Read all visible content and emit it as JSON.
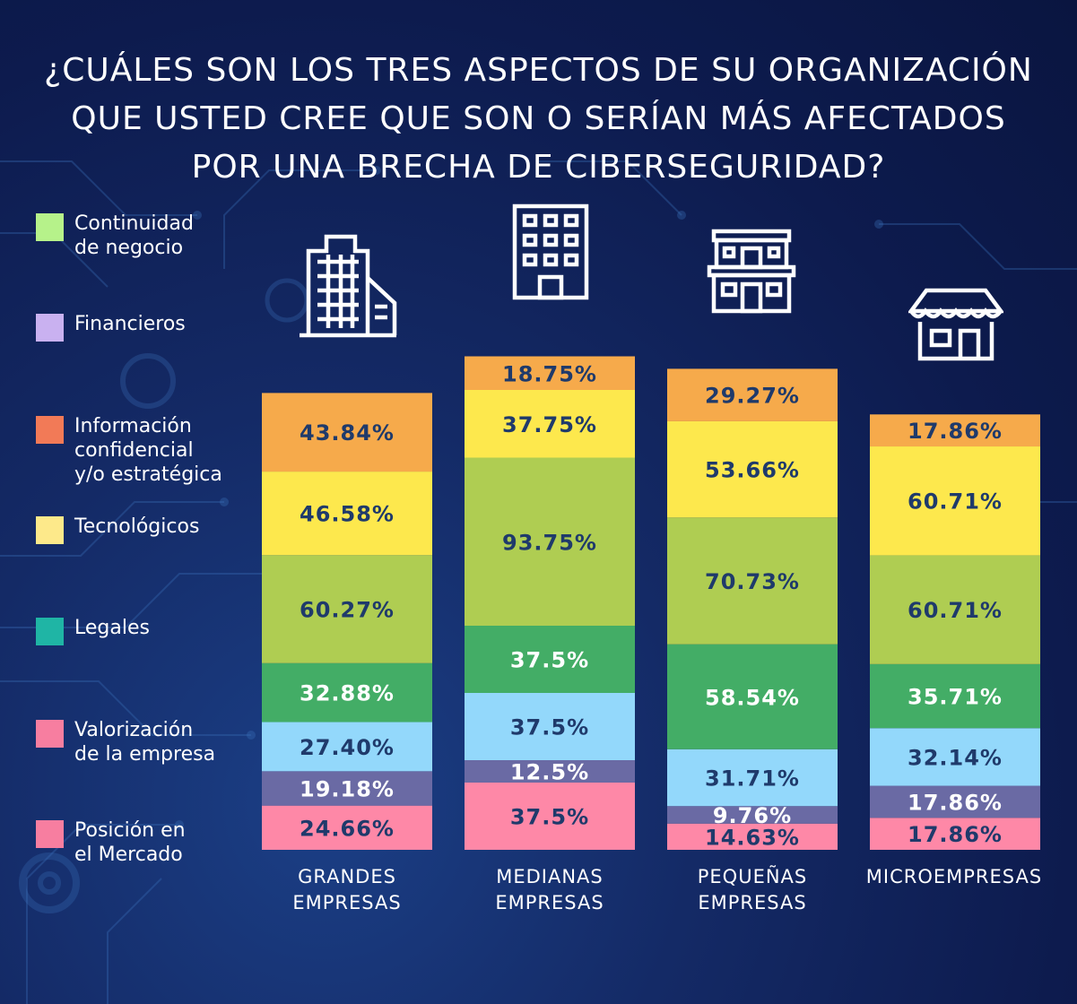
{
  "title_lines": [
    "¿CUÁLES SON LOS TRES ASPECTOS DE SU ORGANIZACIÓN",
    "QUE USTED CREE QUE SON O SERÍAN MÁS AFECTADOS",
    "POR UNA BRECHA DE CIBERSEGURIDAD?"
  ],
  "legend": [
    {
      "label": "Continuidad\nde negocio",
      "color": "#b6f28a"
    },
    {
      "label": "Financieros",
      "color": "#c9b1f0"
    },
    {
      "label": "Información\nconfidencial\ny/o estratégica",
      "color": "#f27a57"
    },
    {
      "label": "Tecnológicos",
      "color": "#fde98a"
    },
    {
      "label": "Legales",
      "color": "#1fb5a5"
    },
    {
      "label": "Valorización\nde la empresa",
      "color": "#f77ea0"
    },
    {
      "label": "Posición en\nel Mercado",
      "color": "#f77ea0"
    }
  ],
  "icons": [
    "office-tower-icon",
    "building-icon",
    "shop-building-icon",
    "storefront-icon"
  ],
  "chart_data": {
    "type": "bar",
    "stacked": true,
    "categories": [
      "GRANDES\nEMPRESAS",
      "MEDIANAS\nEMPRESAS",
      "PEQUEÑAS\nEMPRESAS",
      "MICROEMPRESAS"
    ],
    "segment_colors": [
      "#f6aa4b",
      "#fde84d",
      "#afcd52",
      "#43ad66",
      "#93d8fb",
      "#6a6aa4",
      "#fe88a7"
    ],
    "label_colors": [
      "#1f3a6b",
      "#1f3a6b",
      "#1f3a6b",
      "#ffffff",
      "#1f3a6b",
      "#ffffff",
      "#1f3a6b"
    ],
    "series": [
      {
        "values": [
          43.84,
          18.75,
          29.27,
          17.86
        ],
        "labels": [
          "43.84%",
          "18.75%",
          "29.27%",
          "17.86%"
        ]
      },
      {
        "values": [
          46.58,
          37.75,
          53.66,
          60.71
        ],
        "labels": [
          "46.58%",
          "37.75%",
          "53.66%",
          "60.71%"
        ]
      },
      {
        "values": [
          60.27,
          93.75,
          70.73,
          60.71
        ],
        "labels": [
          "60.27%",
          "93.75%",
          "70.73%",
          "60.71%"
        ]
      },
      {
        "values": [
          32.88,
          37.5,
          58.54,
          35.71
        ],
        "labels": [
          "32.88%",
          "37.5%",
          "58.54%",
          "35.71%"
        ]
      },
      {
        "values": [
          27.4,
          37.5,
          31.71,
          32.14
        ],
        "labels": [
          "27.40%",
          "37.5%",
          "31.71%",
          "32.14%"
        ]
      },
      {
        "values": [
          19.18,
          12.5,
          9.76,
          17.86
        ],
        "labels": [
          "19.18%",
          "12.5%",
          "9.76%",
          "17.86%"
        ]
      },
      {
        "values": [
          24.66,
          37.5,
          14.63,
          17.86
        ],
        "labels": [
          "24.66%",
          "37.5%",
          "14.63%",
          "17.86%"
        ]
      }
    ]
  }
}
